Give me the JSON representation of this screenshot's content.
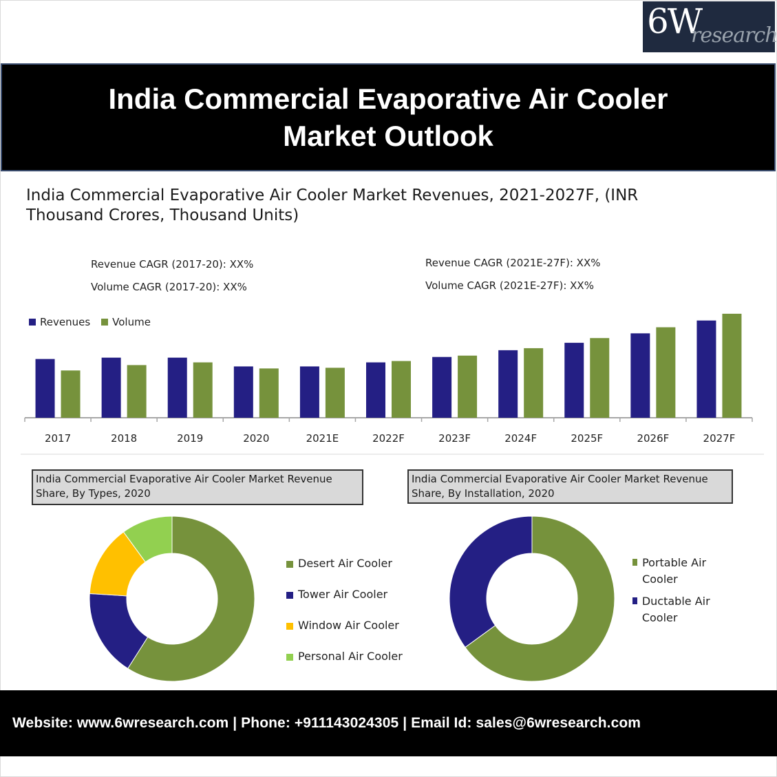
{
  "logo": {
    "main": "6W",
    "sub": "research"
  },
  "banner": {
    "title": "India Commercial Evaporative Air Cooler Market Outlook"
  },
  "colors": {
    "revenue": "#241f84",
    "volume": "#76923c",
    "desert": "#76923c",
    "tower": "#241f84",
    "window": "#ffc000",
    "personal": "#92d050",
    "portable": "#76923c",
    "ductable": "#241f84"
  },
  "chart_data": [
    {
      "type": "bar",
      "title": "India Commercial Evaporative Air Cooler Market Revenues, 2021-2027F, (INR Thousand Crores, Thousand Units)",
      "xlabel": "",
      "ylabel": "",
      "categories": [
        "2017",
        "2018",
        "2019",
        "2020",
        "2021E",
        "2022F",
        "2023F",
        "2024F",
        "2025F",
        "2026F",
        "2027F"
      ],
      "series": [
        {
          "name": "Revenues",
          "values": [
            87,
            89,
            89,
            76,
            76,
            82,
            90,
            100,
            111,
            125,
            144
          ]
        },
        {
          "name": "Volume",
          "values": [
            70,
            78,
            82,
            73,
            74,
            84,
            92,
            103,
            118,
            134,
            154
          ]
        }
      ],
      "ylim": [
        0,
        160
      ],
      "value_units": "relative (unlabeled axis, estimated)",
      "grid": false,
      "legend_position": "top-left",
      "annotations": [
        "Revenue CAGR (2017-20): XX%",
        "Volume CAGR (2017-20): XX%",
        "Revenue CAGR (2021E-27F): XX%",
        "Volume CAGR (2021E-27F): XX%"
      ]
    },
    {
      "type": "pie",
      "donut": true,
      "title": "India Commercial Evaporative Air Cooler Market Revenue Share, By Types, 2020",
      "labels": [
        "Desert Air Cooler",
        "Tower Air Cooler",
        "Window Air Cooler",
        "Personal Air Cooler"
      ],
      "values": [
        59,
        17,
        14,
        10
      ],
      "legend_position": "right"
    },
    {
      "type": "pie",
      "donut": true,
      "title": "India Commercial Evaporative Air Cooler Market Revenue Share, By Installation, 2020",
      "labels": [
        "Portable Air Cooler",
        "Ductable Air Cooler"
      ],
      "values": [
        65,
        35
      ],
      "legend_position": "right"
    }
  ],
  "bar_chart": {
    "title": "India Commercial Evaporative Air Cooler Market Revenues, 2021-2027F,  (INR Thousand Crores, Thousand Units)",
    "cagr_left": {
      "revenue": "Revenue CAGR (2017-20): XX%",
      "volume": "Volume CAGR (2017-20): XX%"
    },
    "cagr_right": {
      "revenue": "Revenue CAGR (2021E-27F): XX%",
      "volume": "Volume CAGR (2021E-27F): XX%"
    },
    "legend": {
      "revenues": "Revenues",
      "volume": "Volume"
    }
  },
  "pie_types": {
    "title": "India Commercial Evaporative Air Cooler Market Revenue Share, By Types, 2020",
    "legend": [
      "Desert Air Cooler",
      "Tower Air Cooler",
      "Window Air Cooler",
      "Personal Air Cooler"
    ]
  },
  "pie_install": {
    "title": "India Commercial Evaporative Air Cooler Market Revenue Share, By Installation, 2020",
    "legend": [
      "Portable Air Cooler",
      "Ductable Air Cooler"
    ]
  },
  "footer": {
    "text": "Website: www.6wresearch.com | Phone: +911143024305 | Email Id: sales@6wresearch.com"
  }
}
